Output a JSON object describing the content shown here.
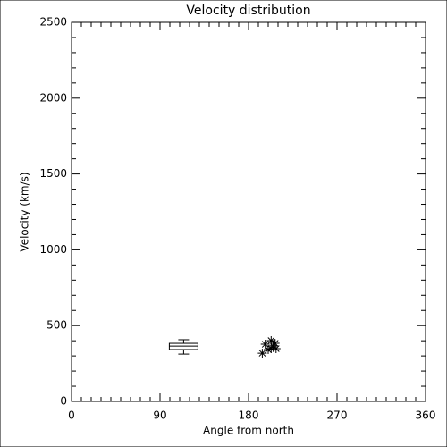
{
  "chart_data": {
    "type": "scatter",
    "title": "Velocity distribution",
    "xlabel": "Angle from north",
    "ylabel": "Velocity (km/s)",
    "xlim": [
      0,
      360
    ],
    "xticks": [
      0,
      90,
      180,
      270,
      360
    ],
    "xminorticks": [
      10,
      20,
      30,
      40,
      50,
      60,
      70,
      80,
      100,
      110,
      120,
      130,
      140,
      150,
      160,
      170,
      190,
      200,
      210,
      220,
      230,
      240,
      250,
      260,
      280,
      290,
      300,
      310,
      320,
      330,
      340,
      350
    ],
    "ylim": [
      0,
      2500
    ],
    "yticks": [
      0,
      500,
      1000,
      1500,
      2000,
      2500
    ],
    "yminorticks": [
      100,
      200,
      300,
      400,
      600,
      700,
      800,
      900,
      1100,
      1200,
      1300,
      1400,
      1600,
      1700,
      1800,
      1900,
      2100,
      2200,
      2300,
      2400
    ],
    "color": "#000000",
    "box": {
      "x": 114,
      "whisker_low": 312,
      "q1": 342,
      "median": 365,
      "q3": 383,
      "whisker_high": 407
    },
    "x": [
      194,
      197,
      200,
      203,
      205,
      207,
      208,
      203
    ],
    "values": [
      318,
      377,
      342,
      401,
      366,
      383,
      348,
      348
    ]
  }
}
